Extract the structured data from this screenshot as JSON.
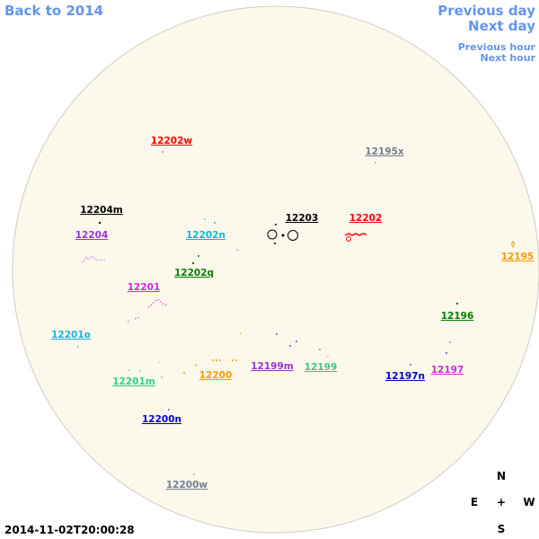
{
  "nav": {
    "back": "Back to 2014",
    "previous_day": "Previous day",
    "next_day": "Next day",
    "previous_hour": "Previous hour",
    "next_hour": "Next hour"
  },
  "regions": [
    {
      "label": "12202w",
      "color": "#ff0000"
    },
    {
      "label": "12195x",
      "color": "#708090"
    },
    {
      "label": "12204m",
      "color": "#000000"
    },
    {
      "label": "12203",
      "color": "#000000"
    },
    {
      "label": "12202",
      "color": "#ff0000"
    },
    {
      "label": "12204",
      "color": "#9932cc"
    },
    {
      "label": "12202n",
      "color": "#1ab0e0"
    },
    {
      "label": "12195",
      "color": "#ff9900"
    },
    {
      "label": "12202q",
      "color": "#008000"
    },
    {
      "label": "12201",
      "color": "#e020e0"
    },
    {
      "label": "12196",
      "color": "#008000"
    },
    {
      "label": "12201o",
      "color": "#1ab0e0"
    },
    {
      "label": "12199m",
      "color": "#9932cc"
    },
    {
      "label": "12199",
      "color": "#33cc88"
    },
    {
      "label": "12197",
      "color": "#e020e0"
    },
    {
      "label": "12200",
      "color": "#ff9900"
    },
    {
      "label": "12197n",
      "color": "#0000cc"
    },
    {
      "label": "12201m",
      "color": "#33cc88"
    },
    {
      "label": "12200n",
      "color": "#0000cc"
    },
    {
      "label": "12200w",
      "color": "#708090"
    }
  ],
  "compass": {
    "north": "N",
    "east": "E",
    "center": "+",
    "west": "W",
    "south": "S"
  },
  "timestamp": "2014-11-02T20:00:28"
}
